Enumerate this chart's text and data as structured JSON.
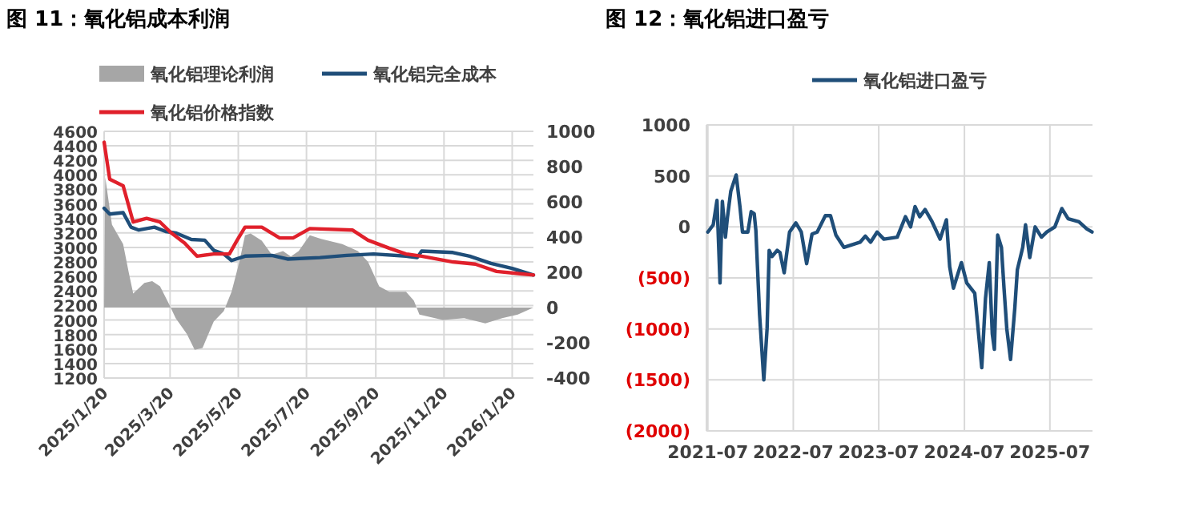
{
  "chart_data": [
    {
      "type": "line",
      "title": "图 11：氧化铝成本利润",
      "legend": "top",
      "grid": true,
      "xlim": [
        "2025-01-20",
        "2026-02-08"
      ],
      "xticks": [
        {
          "value": "2025-01-20",
          "label": "2025/1/20"
        },
        {
          "value": "2025-03-20",
          "label": "2025/3/20"
        },
        {
          "value": "2025-05-20",
          "label": "2025/5/20"
        },
        {
          "value": "2025-07-20",
          "label": "2025/7/20"
        },
        {
          "value": "2025-09-20",
          "label": "2025/9/20"
        },
        {
          "value": "2025-11-20",
          "label": "2025/11/20"
        },
        {
          "value": "2026-01-20",
          "label": "2026/1/20"
        }
      ],
      "ylim": [
        1200,
        4600
      ],
      "yticks": [
        1200,
        1400,
        1600,
        1800,
        2000,
        2200,
        2400,
        2600,
        2800,
        3000,
        3200,
        3400,
        3600,
        3800,
        4000,
        4200,
        4400,
        4600
      ],
      "y2lim": [
        -400,
        1000
      ],
      "y2ticks": [
        {
          "value": -400,
          "label": "-400"
        },
        {
          "value": -200,
          "label": "-200"
        },
        0,
        200,
        400,
        600,
        800,
        1000
      ],
      "series": [
        {
          "name": "氧化铝理论利润",
          "type": "area",
          "axis": "y2",
          "color": "#a6a6a6",
          "x": [
            "2025-01-20",
            "2025-01-21",
            "2025-01-27",
            "2025-02-06",
            "2025-02-11",
            "2025-02-15",
            "2025-02-25",
            "2025-03-04",
            "2025-03-11",
            "2025-03-19",
            "2025-03-25",
            "2025-04-04",
            "2025-04-11",
            "2025-04-18",
            "2025-04-28",
            "2025-05-07",
            "2025-05-14",
            "2025-05-21",
            "2025-05-26",
            "2025-05-31",
            "2025-06-10",
            "2025-06-19",
            "2025-06-29",
            "2025-07-06",
            "2025-07-13",
            "2025-07-23",
            "2025-08-02",
            "2025-08-21",
            "2025-09-04",
            "2025-09-13",
            "2025-09-23",
            "2025-10-02",
            "2025-10-17",
            "2025-10-24",
            "2025-10-29",
            "2025-11-19",
            "2025-12-08",
            "2025-12-27",
            "2026-01-11",
            "2026-01-25",
            "2026-02-08"
          ],
          "values": [
            0,
            740,
            470,
            360,
            200,
            80,
            140,
            150,
            120,
            20,
            -60,
            -150,
            -240,
            -230,
            -80,
            -20,
            90,
            260,
            410,
            420,
            380,
            300,
            320,
            290,
            320,
            410,
            390,
            360,
            320,
            260,
            120,
            90,
            90,
            40,
            -40,
            -70,
            -60,
            -90,
            -60,
            -40,
            0
          ]
        },
        {
          "name": "氧化铝完全成本",
          "color": "#1f4e79",
          "x": [
            "2025-01-20",
            "2025-01-25",
            "2025-02-06",
            "2025-02-13",
            "2025-02-20",
            "2025-03-06",
            "2025-03-16",
            "2025-03-25",
            "2025-04-08",
            "2025-04-20",
            "2025-04-28",
            "2025-05-07",
            "2025-05-14",
            "2025-05-26",
            "2025-06-19",
            "2025-07-03",
            "2025-08-01",
            "2025-08-25",
            "2025-09-18",
            "2025-10-17",
            "2025-10-27",
            "2025-10-31",
            "2025-11-28",
            "2025-12-13",
            "2026-01-01",
            "2026-01-20",
            "2026-02-08"
          ],
          "values": [
            3540,
            3460,
            3480,
            3280,
            3240,
            3280,
            3220,
            3200,
            3110,
            3100,
            2960,
            2910,
            2820,
            2880,
            2890,
            2840,
            2860,
            2890,
            2910,
            2880,
            2860,
            2950,
            2930,
            2880,
            2780,
            2710,
            2620
          ]
        },
        {
          "name": "氧化铝价格指数",
          "color": "#e0202b",
          "x": [
            "2025-01-20",
            "2025-01-25",
            "2025-02-06",
            "2025-02-15",
            "2025-02-27",
            "2025-03-11",
            "2025-03-21",
            "2025-04-02",
            "2025-04-13",
            "2025-04-28",
            "2025-05-12",
            "2025-05-19",
            "2025-05-26",
            "2025-06-10",
            "2025-06-26",
            "2025-07-08",
            "2025-07-23",
            "2025-08-30",
            "2025-09-13",
            "2025-10-02",
            "2025-10-17",
            "2025-10-31",
            "2025-11-28",
            "2025-12-18",
            "2026-01-06",
            "2026-01-25",
            "2026-02-08"
          ],
          "values": [
            4450,
            3940,
            3850,
            3350,
            3400,
            3350,
            3200,
            3060,
            2880,
            2910,
            2910,
            3100,
            3280,
            3280,
            3130,
            3130,
            3260,
            3240,
            3100,
            2990,
            2910,
            2880,
            2800,
            2770,
            2670,
            2640,
            2620
          ]
        }
      ]
    },
    {
      "type": "line",
      "title": "图 12：氧化铝进口盈亏",
      "legend": "top",
      "grid": true,
      "xlim": [
        "2021-06-25",
        "2025-12-30"
      ],
      "xticks": [
        {
          "value": "2021-07-01",
          "label": "2021-07"
        },
        {
          "value": "2022-07-01",
          "label": "2022-07"
        },
        {
          "value": "2023-07-01",
          "label": "2023-07"
        },
        {
          "value": "2024-07-01",
          "label": "2024-07"
        },
        {
          "value": "2025-07-01",
          "label": "2025-07"
        }
      ],
      "ylim": [
        -2000,
        1000
      ],
      "yticks": [
        {
          "value": -2000,
          "label": "(2000)"
        },
        {
          "value": -1500,
          "label": "(1500)"
        },
        {
          "value": -1000,
          "label": "(1000)"
        },
        {
          "value": -500,
          "label": "(500)"
        },
        0,
        500,
        1000
      ],
      "series": [
        {
          "name": "氧化铝进口盈亏",
          "color": "#1f4e79",
          "x": [
            "2021-07-01",
            "2021-07-24",
            "2021-08-09",
            "2021-08-22",
            "2021-09-01",
            "2021-09-14",
            "2021-09-23",
            "2021-10-07",
            "2021-10-30",
            "2021-11-15",
            "2021-11-26",
            "2021-12-19",
            "2022-01-02",
            "2022-01-15",
            "2022-01-22",
            "2022-02-07",
            "2022-02-25",
            "2022-03-11",
            "2022-03-20",
            "2022-04-01",
            "2022-04-23",
            "2022-05-05",
            "2022-05-23",
            "2022-06-15",
            "2022-07-12",
            "2022-08-04",
            "2022-08-27",
            "2022-09-19",
            "2022-10-11",
            "2022-11-15",
            "2022-12-07",
            "2022-12-30",
            "2023-02-02",
            "2023-04-12",
            "2023-05-05",
            "2023-05-27",
            "2023-06-24",
            "2023-07-23",
            "2023-09-18",
            "2023-10-23",
            "2023-11-14",
            "2023-12-03",
            "2023-12-23",
            "2024-01-15",
            "2024-02-14",
            "2024-03-19",
            "2024-04-15",
            "2024-04-29",
            "2024-05-15",
            "2024-06-18",
            "2024-07-11",
            "2024-08-14",
            "2024-09-13",
            "2024-09-29",
            "2024-10-15",
            "2024-10-28",
            "2024-11-06",
            "2024-11-20",
            "2024-12-06",
            "2024-12-17",
            "2024-12-29",
            "2025-01-14",
            "2025-02-01",
            "2025-02-12",
            "2025-03-07",
            "2025-03-19",
            "2025-04-06",
            "2025-04-29",
            "2025-05-26",
            "2025-06-18",
            "2025-07-22",
            "2025-08-21",
            "2025-09-17",
            "2025-11-02",
            "2025-12-06",
            "2025-12-28"
          ],
          "values": [
            -50,
            20,
            260,
            -550,
            250,
            -100,
            100,
            350,
            510,
            200,
            -50,
            -50,
            150,
            130,
            -30,
            -860,
            -1500,
            -1000,
            -230,
            -290,
            -230,
            -250,
            -450,
            -50,
            40,
            -50,
            -360,
            -70,
            -50,
            110,
            110,
            -80,
            -200,
            -150,
            -90,
            -150,
            -50,
            -120,
            -100,
            100,
            0,
            200,
            100,
            170,
            50,
            -120,
            70,
            -390,
            -600,
            -350,
            -550,
            -650,
            -1380,
            -700,
            -350,
            -1050,
            -1200,
            -80,
            -200,
            -600,
            -1000,
            -1300,
            -800,
            -420,
            -200,
            20,
            -300,
            0,
            -100,
            -50,
            0,
            180,
            80,
            50,
            -20,
            -50
          ]
        }
      ]
    }
  ]
}
